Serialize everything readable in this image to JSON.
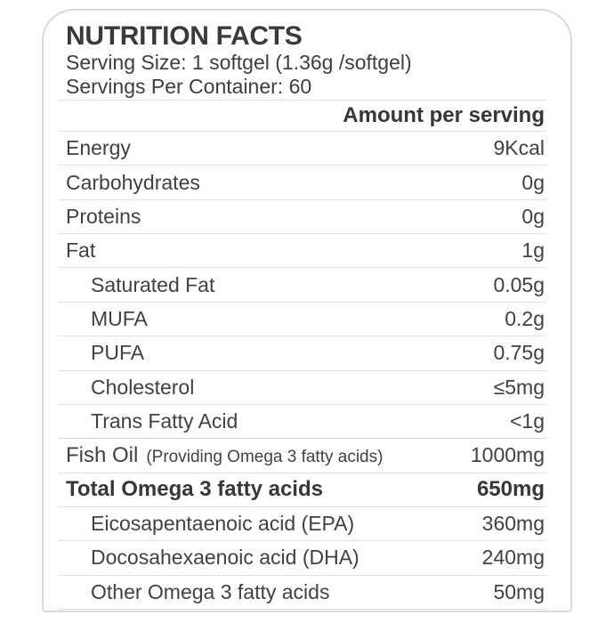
{
  "label": {
    "title": "NUTRITION FACTS",
    "serving_size": "Serving Size: 1 softgel (1.36g /softgel)",
    "servings_per_container": "Servings Per Container: 60",
    "amount_header": "Amount per serving",
    "rows": [
      {
        "label": "Energy",
        "value": "9Kcal"
      },
      {
        "label": "Carbohydrates",
        "value": "0g"
      },
      {
        "label": "Proteins",
        "value": "0g"
      },
      {
        "label": "Fat",
        "value": "1g"
      },
      {
        "label": "Saturated Fat",
        "value": "0.05g"
      },
      {
        "label": "MUFA",
        "value": "0.2g"
      },
      {
        "label": "PUFA",
        "value": "0.75g"
      },
      {
        "label": "Cholesterol",
        "value": "≤5mg"
      },
      {
        "label": "Trans Fatty Acid",
        "value": "<1g"
      },
      {
        "label": "Fish Oil",
        "note": "(Providing Omega 3 fatty acids)",
        "value": "1000mg"
      },
      {
        "label": "Total Omega 3 fatty acids",
        "value": "650mg"
      },
      {
        "label": "Eicosapentaenoic acid (EPA)",
        "value": "360mg"
      },
      {
        "label": "Docosahexaenoic acid (DHA)",
        "value": "240mg"
      },
      {
        "label": "Other Omega 3 fatty acids",
        "value": "50mg"
      }
    ],
    "colors": {
      "text": "#414141",
      "title": "#3a3a3c",
      "separator": "#e3e1e0",
      "card_border": "#dadada"
    }
  }
}
